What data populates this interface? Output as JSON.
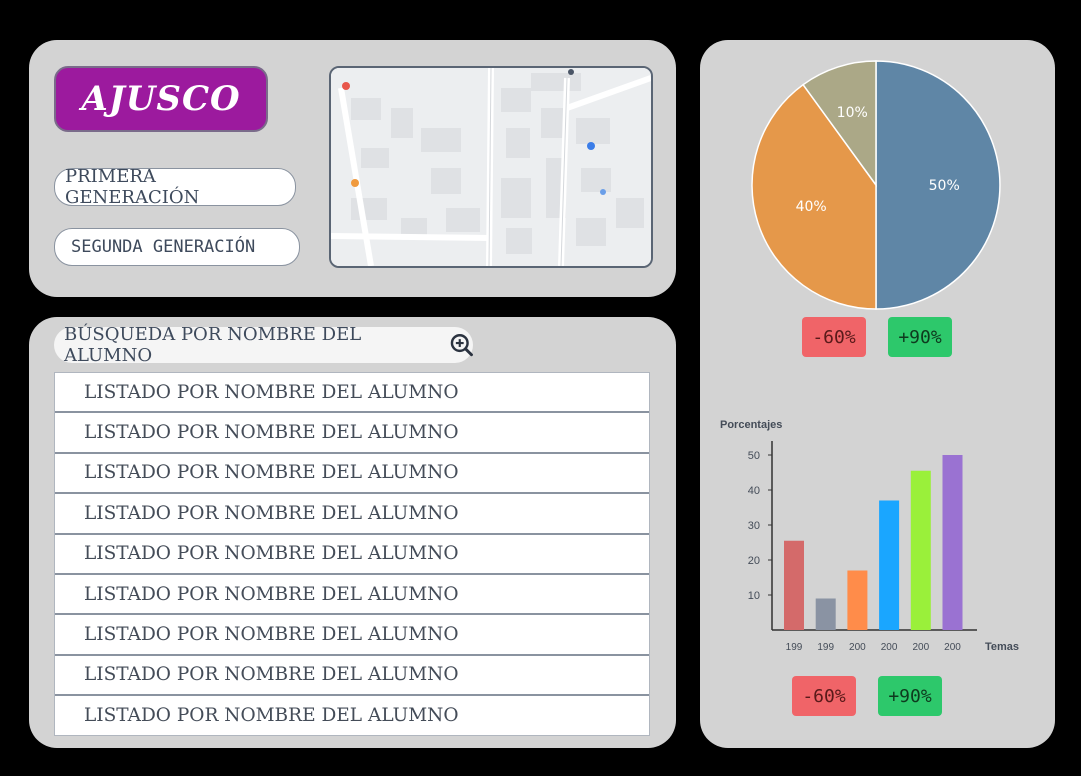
{
  "header": {
    "brand": "AJUSCO",
    "generation_1": "PRIMERA GENERACIÓN",
    "generation_2": "SEGUNDA GENERACIÓN"
  },
  "map": {
    "icon": "map-thumbnail"
  },
  "search": {
    "label": "BÚSQUEDA POR NOMBRE DEL ALUMNO",
    "icon": "zoom-in-icon"
  },
  "students": [
    "LISTADO POR NOMBRE DEL ALUMNO",
    "LISTADO POR NOMBRE DEL ALUMNO",
    "LISTADO POR NOMBRE DEL ALUMNO",
    "LISTADO POR NOMBRE DEL ALUMNO",
    "LISTADO POR NOMBRE DEL ALUMNO",
    "LISTADO POR NOMBRE DEL ALUMNO",
    "LISTADO POR NOMBRE DEL ALUMNO",
    "LISTADO POR NOMBRE DEL ALUMNO",
    "LISTADO POR NOMBRE DEL ALUMNO"
  ],
  "badges": {
    "pie_negative": "-60%",
    "pie_positive": "+90%",
    "bar_negative": "-60%",
    "bar_positive": "+90%",
    "negative_color": "#f06468",
    "positive_color": "#2dc86b"
  },
  "chart_data": [
    {
      "type": "pie",
      "slices": [
        {
          "label": "50%",
          "value": 50,
          "color": "#5f86a6"
        },
        {
          "label": "40%",
          "value": 40,
          "color": "#e5984a"
        },
        {
          "label": "10%",
          "value": 10,
          "color": "#aba887"
        }
      ]
    },
    {
      "type": "bar",
      "ylabel": "Porcentajes",
      "xlabel": "Temas",
      "categories": [
        "199",
        "199",
        "200",
        "200",
        "200",
        "200"
      ],
      "values": [
        25.5,
        9,
        17,
        37,
        45.5,
        50
      ],
      "colors": [
        "#d46a6a",
        "#8a93a3",
        "#ff8c4a",
        "#1aa6ff",
        "#9af03a",
        "#9a72d2"
      ],
      "yticks": [
        10,
        20,
        30,
        40,
        50
      ],
      "ylim": [
        0,
        50
      ],
      "grid": false
    }
  ]
}
